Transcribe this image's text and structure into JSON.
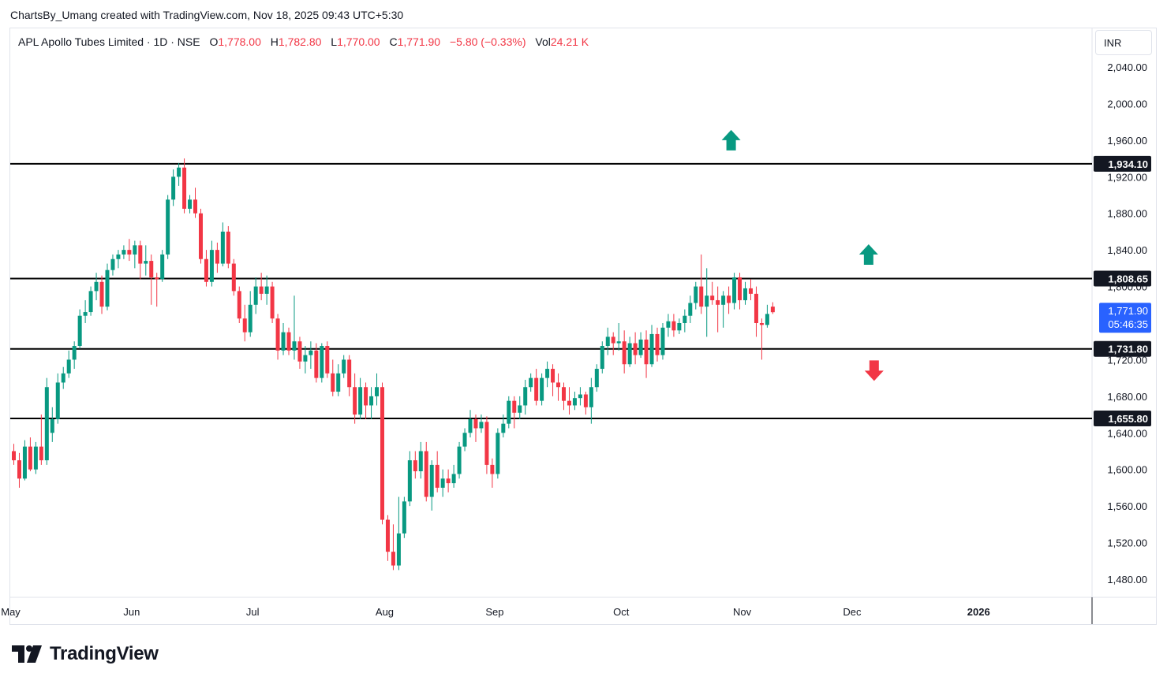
{
  "header": {
    "attribution": "ChartsBy_Umang created with TradingView.com, Nov 18, 2025 09:43 UTC+5:30"
  },
  "legend": {
    "symbol": "APL Apollo Tubes Limited · 1D · NSE",
    "open_label": "O",
    "open": "1,778.00",
    "high_label": "H",
    "high": "1,782.80",
    "low_label": "L",
    "low": "1,770.00",
    "close_label": "C",
    "close": "1,771.90",
    "change": "−5.80 (−0.33%)",
    "vol_label": "Vol",
    "vol": "24.21 K"
  },
  "currency": "INR",
  "brand": {
    "name": "TradingView"
  },
  "colors": {
    "up": "#089981",
    "down": "#f23645",
    "level_line": "#000000",
    "last_price_bg": "#2962ff",
    "grid_text": "#131722"
  },
  "chart_data": {
    "type": "candlestick",
    "title": "APL Apollo Tubes Limited · 1D · NSE",
    "ylim": [
      1460,
      2060
    ],
    "y_ticks": [
      "1,480.00",
      "1,520.00",
      "1,560.00",
      "1,600.00",
      "1,640.00",
      "1,680.00",
      "1,720.00",
      "1,760.00",
      "1,800.00",
      "1,840.00",
      "1,880.00",
      "1,920.00",
      "1,960.00",
      "2,000.00",
      "2,040.00"
    ],
    "y_tick_values": [
      1480,
      1520,
      1560,
      1600,
      1640,
      1680,
      1720,
      1760,
      1800,
      1840,
      1880,
      1920,
      1960,
      2000,
      2040
    ],
    "x_labels": [
      {
        "label": "May",
        "index": -1
      },
      {
        "label": "Jun",
        "index": 21
      },
      {
        "label": "Jul",
        "index": 43
      },
      {
        "label": "Aug",
        "index": 67
      },
      {
        "label": "Sep",
        "index": 87
      },
      {
        "label": "Oct",
        "index": 110
      },
      {
        "label": "Nov",
        "index": 132
      },
      {
        "label": "Dec",
        "index": 152
      },
      {
        "label": "2026",
        "index": 175
      }
    ],
    "levels": [
      {
        "value": 1934.1,
        "label": "1,934.10"
      },
      {
        "value": 1808.65,
        "label": "1,808.65"
      },
      {
        "value": 1731.8,
        "label": "1,731.80"
      },
      {
        "value": 1655.8,
        "label": "1,655.80"
      }
    ],
    "last_price": {
      "value": 1771.9,
      "label": "1,771.90",
      "countdown": "05:46:35"
    },
    "arrows": [
      {
        "direction": "up",
        "index": 130,
        "value": 1960,
        "color": "#089981"
      },
      {
        "direction": "up",
        "index": 155,
        "value": 1835,
        "color": "#089981"
      },
      {
        "direction": "down",
        "index": 156,
        "value": 1708,
        "color": "#f23645"
      }
    ],
    "candles": [
      [
        1620,
        1628,
        1605,
        1610
      ],
      [
        1610,
        1618,
        1580,
        1590
      ],
      [
        1590,
        1632,
        1588,
        1625
      ],
      [
        1625,
        1635,
        1598,
        1600
      ],
      [
        1600,
        1630,
        1595,
        1625
      ],
      [
        1625,
        1660,
        1605,
        1610
      ],
      [
        1610,
        1700,
        1605,
        1690
      ],
      [
        1640,
        1668,
        1630,
        1655
      ],
      [
        1655,
        1705,
        1650,
        1695
      ],
      [
        1695,
        1712,
        1688,
        1705
      ],
      [
        1705,
        1730,
        1700,
        1720
      ],
      [
        1720,
        1740,
        1710,
        1735
      ],
      [
        1735,
        1775,
        1732,
        1768
      ],
      [
        1768,
        1785,
        1760,
        1772
      ],
      [
        1772,
        1800,
        1768,
        1795
      ],
      [
        1795,
        1815,
        1785,
        1805
      ],
      [
        1805,
        1812,
        1770,
        1778
      ],
      [
        1778,
        1825,
        1774,
        1818
      ],
      [
        1818,
        1835,
        1812,
        1830
      ],
      [
        1830,
        1840,
        1820,
        1835
      ],
      [
        1835,
        1845,
        1830,
        1840
      ],
      [
        1840,
        1852,
        1828,
        1835
      ],
      [
        1835,
        1850,
        1820,
        1845
      ],
      [
        1845,
        1850,
        1808,
        1825
      ],
      [
        1825,
        1845,
        1812,
        1828
      ],
      [
        1828,
        1835,
        1780,
        1810
      ],
      [
        1810,
        1815,
        1778,
        1808
      ],
      [
        1808,
        1840,
        1805,
        1835
      ],
      [
        1835,
        1900,
        1830,
        1895
      ],
      [
        1895,
        1928,
        1888,
        1920
      ],
      [
        1920,
        1935,
        1910,
        1930
      ],
      [
        1930,
        1940,
        1880,
        1885
      ],
      [
        1885,
        1900,
        1880,
        1895
      ],
      [
        1895,
        1908,
        1875,
        1880
      ],
      [
        1880,
        1885,
        1825,
        1830
      ],
      [
        1830,
        1840,
        1800,
        1805
      ],
      [
        1805,
        1850,
        1800,
        1840
      ],
      [
        1840,
        1848,
        1815,
        1825
      ],
      [
        1825,
        1870,
        1822,
        1860
      ],
      [
        1860,
        1866,
        1820,
        1825
      ],
      [
        1825,
        1830,
        1790,
        1795
      ],
      [
        1795,
        1800,
        1760,
        1765
      ],
      [
        1765,
        1780,
        1740,
        1750
      ],
      [
        1750,
        1795,
        1745,
        1780
      ],
      [
        1780,
        1810,
        1770,
        1800
      ],
      [
        1800,
        1815,
        1785,
        1792
      ],
      [
        1792,
        1812,
        1780,
        1800
      ],
      [
        1800,
        1805,
        1760,
        1765
      ],
      [
        1765,
        1770,
        1720,
        1730
      ],
      [
        1730,
        1760,
        1725,
        1750
      ],
      [
        1750,
        1755,
        1725,
        1730
      ],
      [
        1730,
        1790,
        1720,
        1740
      ],
      [
        1740,
        1745,
        1710,
        1718
      ],
      [
        1718,
        1735,
        1705,
        1725
      ],
      [
        1725,
        1740,
        1710,
        1730
      ],
      [
        1730,
        1738,
        1695,
        1700
      ],
      [
        1700,
        1738,
        1695,
        1735
      ],
      [
        1735,
        1740,
        1700,
        1705
      ],
      [
        1705,
        1720,
        1680,
        1685
      ],
      [
        1685,
        1715,
        1680,
        1705
      ],
      [
        1705,
        1725,
        1700,
        1720
      ],
      [
        1720,
        1725,
        1680,
        1690
      ],
      [
        1690,
        1705,
        1650,
        1660
      ],
      [
        1660,
        1700,
        1655,
        1690
      ],
      [
        1690,
        1695,
        1655,
        1670
      ],
      [
        1670,
        1690,
        1655,
        1680
      ],
      [
        1680,
        1705,
        1670,
        1690
      ],
      [
        1690,
        1695,
        1540,
        1545
      ],
      [
        1545,
        1550,
        1500,
        1510
      ],
      [
        1510,
        1540,
        1490,
        1495
      ],
      [
        1495,
        1570,
        1490,
        1530
      ],
      [
        1530,
        1570,
        1525,
        1565
      ],
      [
        1565,
        1620,
        1560,
        1610
      ],
      [
        1610,
        1620,
        1590,
        1598
      ],
      [
        1598,
        1630,
        1590,
        1620
      ],
      [
        1620,
        1630,
        1565,
        1570
      ],
      [
        1570,
        1610,
        1555,
        1605
      ],
      [
        1605,
        1620,
        1575,
        1580
      ],
      [
        1580,
        1600,
        1570,
        1590
      ],
      [
        1590,
        1600,
        1575,
        1585
      ],
      [
        1585,
        1605,
        1580,
        1595
      ],
      [
        1595,
        1630,
        1590,
        1625
      ],
      [
        1625,
        1645,
        1620,
        1640
      ],
      [
        1640,
        1665,
        1635,
        1655
      ],
      [
        1655,
        1660,
        1630,
        1645
      ],
      [
        1645,
        1660,
        1640,
        1652
      ],
      [
        1652,
        1658,
        1595,
        1605
      ],
      [
        1605,
        1612,
        1580,
        1595
      ],
      [
        1595,
        1645,
        1590,
        1640
      ],
      [
        1640,
        1660,
        1635,
        1650
      ],
      [
        1650,
        1680,
        1645,
        1675
      ],
      [
        1675,
        1680,
        1645,
        1662
      ],
      [
        1662,
        1680,
        1655,
        1670
      ],
      [
        1670,
        1698,
        1660,
        1690
      ],
      [
        1690,
        1705,
        1685,
        1700
      ],
      [
        1700,
        1710,
        1670,
        1675
      ],
      [
        1675,
        1705,
        1670,
        1700
      ],
      [
        1700,
        1718,
        1690,
        1710
      ],
      [
        1710,
        1715,
        1680,
        1695
      ],
      [
        1695,
        1705,
        1675,
        1690
      ],
      [
        1690,
        1695,
        1665,
        1675
      ],
      [
        1675,
        1690,
        1660,
        1670
      ],
      [
        1670,
        1685,
        1665,
        1678
      ],
      [
        1678,
        1690,
        1670,
        1682
      ],
      [
        1682,
        1685,
        1660,
        1668
      ],
      [
        1668,
        1700,
        1650,
        1690
      ],
      [
        1690,
        1715,
        1685,
        1710
      ],
      [
        1710,
        1740,
        1705,
        1735
      ],
      [
        1735,
        1755,
        1725,
        1745
      ],
      [
        1745,
        1750,
        1725,
        1738
      ],
      [
        1738,
        1760,
        1730,
        1740
      ],
      [
        1740,
        1752,
        1705,
        1715
      ],
      [
        1715,
        1745,
        1712,
        1738
      ],
      [
        1738,
        1750,
        1715,
        1725
      ],
      [
        1725,
        1750,
        1722,
        1742
      ],
      [
        1742,
        1752,
        1700,
        1715
      ],
      [
        1715,
        1758,
        1712,
        1748
      ],
      [
        1748,
        1755,
        1718,
        1725
      ],
      [
        1725,
        1760,
        1720,
        1755
      ],
      [
        1755,
        1770,
        1745,
        1762
      ],
      [
        1762,
        1770,
        1745,
        1752
      ],
      [
        1752,
        1765,
        1748,
        1760
      ],
      [
        1760,
        1775,
        1750,
        1768
      ],
      [
        1768,
        1790,
        1760,
        1782
      ],
      [
        1782,
        1805,
        1775,
        1800
      ],
      [
        1800,
        1835,
        1770,
        1778
      ],
      [
        1778,
        1820,
        1745,
        1790
      ],
      [
        1790,
        1805,
        1780,
        1785
      ],
      [
        1785,
        1800,
        1750,
        1780
      ],
      [
        1780,
        1795,
        1755,
        1790
      ],
      [
        1790,
        1800,
        1770,
        1782
      ],
      [
        1782,
        1815,
        1775,
        1810
      ],
      [
        1810,
        1815,
        1775,
        1785
      ],
      [
        1785,
        1805,
        1780,
        1798
      ],
      [
        1798,
        1808,
        1785,
        1792
      ],
      [
        1792,
        1800,
        1745,
        1760
      ],
      [
        1760,
        1765,
        1720,
        1758
      ],
      [
        1758,
        1780,
        1755,
        1770
      ],
      [
        1778,
        1782.8,
        1770,
        1771.9
      ]
    ]
  }
}
